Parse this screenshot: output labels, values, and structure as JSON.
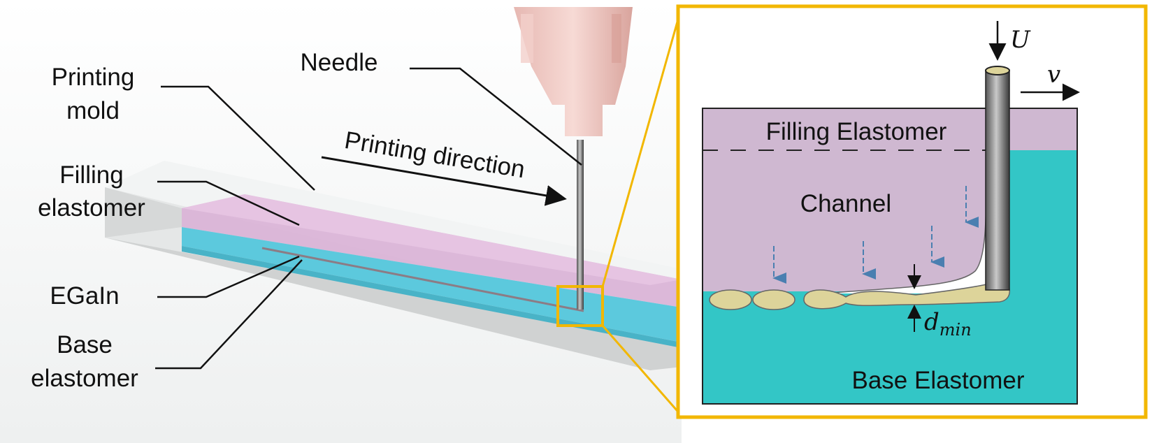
{
  "left_panel": {
    "labels": {
      "printing_mold": [
        "Printing",
        "mold"
      ],
      "filling_elastomer": [
        "Filling",
        "elastomer"
      ],
      "egain": "EGaIn",
      "base_elastomer": [
        "Base",
        "elastomer"
      ],
      "needle": "Needle",
      "printing_direction": "Printing direction"
    }
  },
  "zoom_panel": {
    "labels": {
      "filling_elastomer": "Filling Elastomer",
      "channel": "Channel",
      "base_elastomer": "Base Elastomer",
      "velocity_U": "U",
      "velocity_v": "v",
      "d_main": "d",
      "d_sub": "min"
    }
  },
  "colors": {
    "filling": "#cfb8d1",
    "base": "#33c6c6",
    "egain": "#ddd49a",
    "zoom_frame": "#f2b700",
    "arrow_blue": "#4a7fb0"
  }
}
